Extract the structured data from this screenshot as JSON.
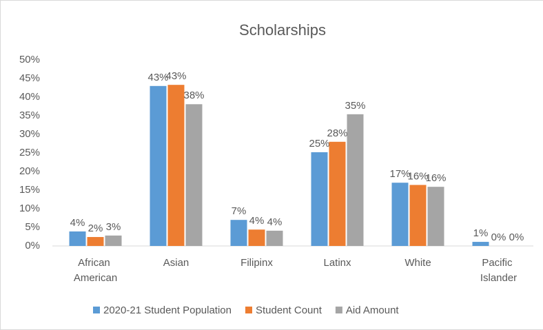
{
  "chart_data": {
    "type": "bar",
    "title": "Scholarships",
    "categories": [
      "African American",
      "Asian",
      "Filipinx",
      "Latinx",
      "White",
      "Pacific Islander"
    ],
    "series": [
      {
        "name": "2020-21 Student Population",
        "color": "#5b9bd5",
        "values": [
          3.9,
          43.0,
          7.0,
          25.2,
          17.0,
          1.1
        ],
        "value_labels": [
          "4%",
          "43%",
          "7%",
          "25%",
          "17%",
          "1%"
        ]
      },
      {
        "name": "Student Count",
        "color": "#ed7d31",
        "values": [
          2.4,
          43.3,
          4.4,
          28.0,
          16.4,
          0
        ],
        "value_labels": [
          "2%",
          "43%",
          "4%",
          "28%",
          "16%",
          "0%"
        ]
      },
      {
        "name": "Aid Amount",
        "color": "#a5a5a5",
        "values": [
          2.8,
          38.1,
          4.1,
          35.4,
          15.9,
          0
        ],
        "value_labels": [
          "3%",
          "38%",
          "4%",
          "35%",
          "16%",
          "0%"
        ]
      }
    ],
    "ylim": [
      0,
      50
    ],
    "yticks": [
      {
        "value": 0,
        "label": "0%"
      },
      {
        "value": 5,
        "label": "5%"
      },
      {
        "value": 10,
        "label": "10%"
      },
      {
        "value": 15,
        "label": "15%"
      },
      {
        "value": 20,
        "label": "20%"
      },
      {
        "value": 25,
        "label": "25%"
      },
      {
        "value": 30,
        "label": "30%"
      },
      {
        "value": 35,
        "label": "35%"
      },
      {
        "value": 40,
        "label": "40%"
      },
      {
        "value": 45,
        "label": "45%"
      },
      {
        "value": 50,
        "label": "50%"
      }
    ],
    "grid": false,
    "legend": "bottom"
  }
}
